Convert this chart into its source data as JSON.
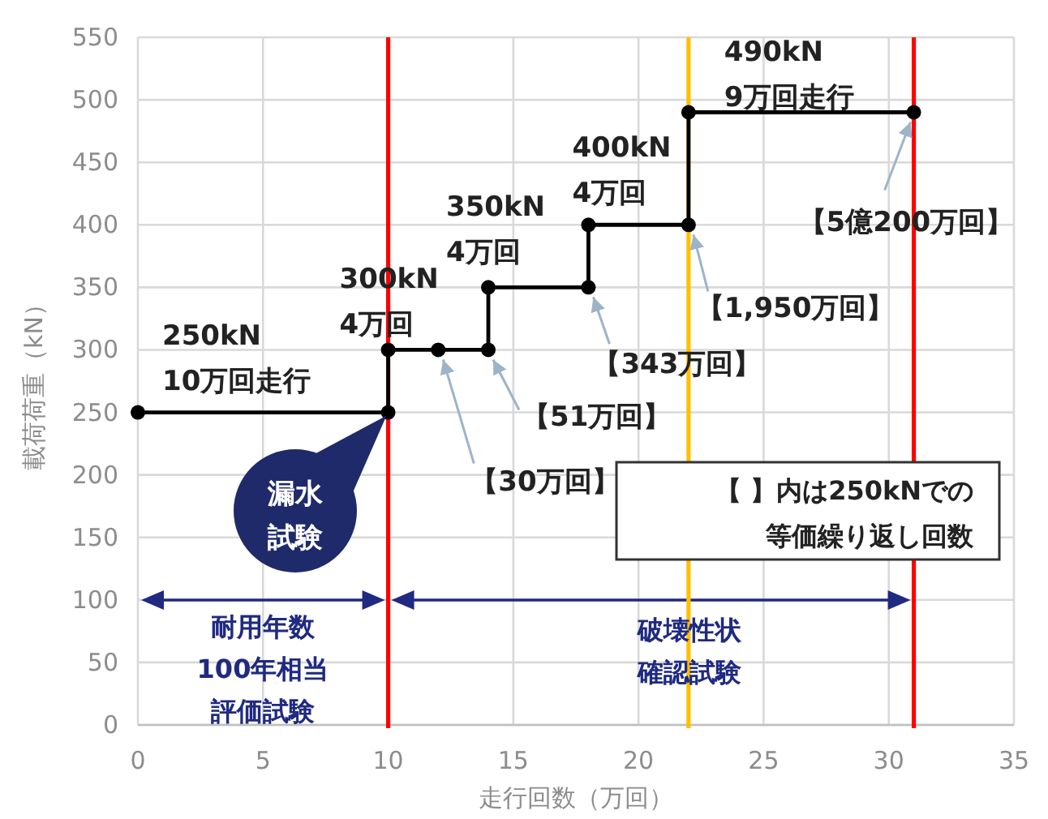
{
  "chart_data": {
    "type": "line",
    "xlabel": "走行回数（万回）",
    "ylabel": "載荷荷重（kN）",
    "x": [
      0,
      10,
      10,
      12,
      14,
      14,
      18,
      18,
      22,
      22,
      31
    ],
    "series": [
      {
        "color": "#000000",
        "values": [
          250,
          250,
          300,
          300,
          300,
          350,
          350,
          400,
          400,
          490,
          490
        ]
      }
    ],
    "xlim": [
      0,
      35
    ],
    "xticks": [
      0,
      5,
      10,
      15,
      20,
      25,
      30,
      35
    ],
    "ylim": [
      0,
      550
    ],
    "yticks": [
      0,
      50,
      100,
      150,
      200,
      250,
      300,
      350,
      400,
      450,
      500,
      550
    ],
    "grid": true,
    "marker": "circle",
    "line_style": "solid",
    "ref_lines": [
      {
        "axis": "x",
        "value": 10,
        "color": "#ff0000"
      },
      {
        "axis": "x",
        "value": 22,
        "color": "#ffc000"
      },
      {
        "axis": "x",
        "value": 31,
        "color": "#ff0000"
      }
    ],
    "annotations": [
      {
        "text": "250kN\n10万回走行",
        "x": 0,
        "y": 250
      },
      {
        "text": "300kN\n4万回",
        "x": 10,
        "y": 300
      },
      {
        "text": "350kN\n4万回",
        "x": 14,
        "y": 350
      },
      {
        "text": "400kN\n4万回",
        "x": 18,
        "y": 400
      },
      {
        "text": "490kN\n9万回走行",
        "x": 22,
        "y": 490
      },
      {
        "text": "【30万回】",
        "x": 12,
        "y": 300
      },
      {
        "text": "【51万回】",
        "x": 14,
        "y": 300
      },
      {
        "text": "【343万回】",
        "x": 18,
        "y": 350
      },
      {
        "text": "【1,950万回】",
        "x": 22,
        "y": 400
      },
      {
        "text": "【5億200万回】",
        "x": 31,
        "y": 490
      },
      "漏水",
      "試験",
      "【 】内は250kNでの",
      "等価繰り返し回数",
      "耐用年数",
      "100年相当",
      "評価試験",
      "破壊性状",
      "確認試験"
    ]
  }
}
